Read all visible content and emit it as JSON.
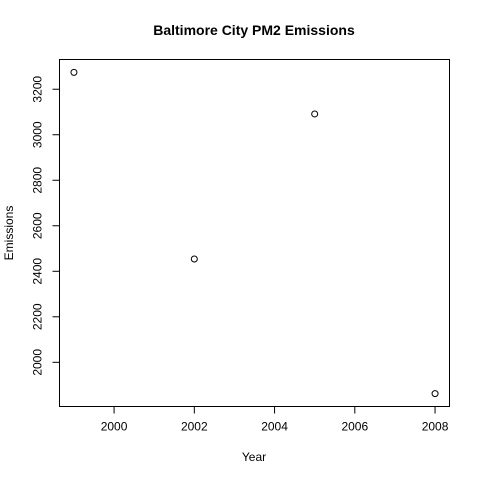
{
  "chart_data": {
    "type": "scatter",
    "title": "Baltimore City PM2 Emissions",
    "xlabel": "Year",
    "ylabel": "Emissions",
    "x": [
      1999,
      2002,
      2005,
      2008
    ],
    "y": [
      3274.18,
      2453.92,
      3091.35,
      1862.28
    ],
    "xlim": [
      1999,
      2008
    ],
    "ylim": [
      1862.28,
      3274.18
    ],
    "xticks": [
      2000,
      2002,
      2004,
      2006,
      2008
    ],
    "yticks": [
      2000,
      2200,
      2400,
      2600,
      2800,
      3000,
      3200
    ],
    "marker": "open-circle",
    "marker_color": "#000000",
    "grid": false,
    "legend": "none"
  }
}
